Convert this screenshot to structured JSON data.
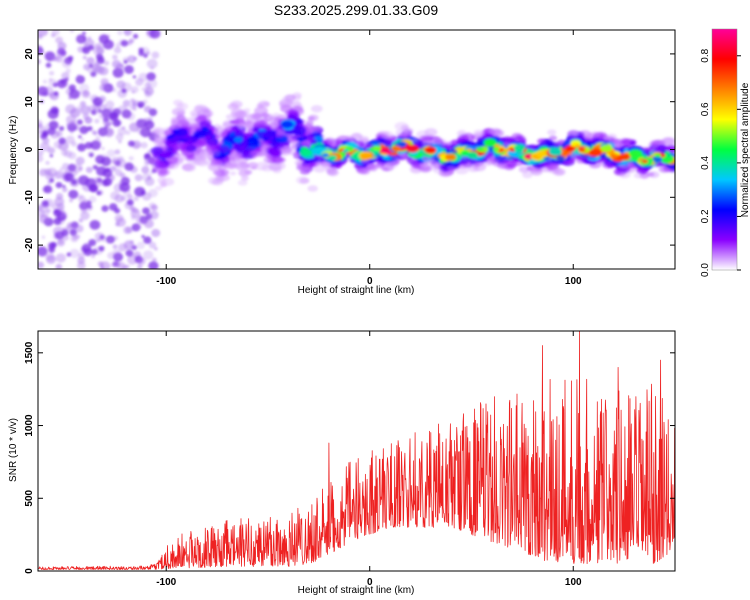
{
  "title": "S233.2025.299.01.33.G09",
  "colors": {
    "snr_line": "#ee2222",
    "frame": "#000000",
    "noise": "#a56cf0",
    "scatter_strong": "#7a2ee6"
  },
  "colorbar": {
    "label": "Normalized spectral amplitude",
    "ticks": [
      "0.0",
      "0.2",
      "0.4",
      "0.6",
      "0.8"
    ],
    "range": [
      0,
      0.9
    ],
    "colormap": [
      "#ffffff",
      "#8a00ff",
      "#0000ff",
      "#00c8ff",
      "#00ff40",
      "#ffff00",
      "#ff8000",
      "#ff0000",
      "#ff0099"
    ]
  },
  "chart_data": [
    {
      "type": "heatmap",
      "title": "S233.2025.299.01.33.G09",
      "xlabel": "Height of straight line (km)",
      "ylabel": "Frequency (Hz)",
      "xlim": [
        -163,
        150
      ],
      "ylim": [
        -25,
        25
      ],
      "xticks": [
        -100,
        0,
        100
      ],
      "xtick_labels": [
        "-100",
        "0",
        "100"
      ],
      "yticks": [
        -20,
        -10,
        0,
        10,
        20
      ],
      "ytick_labels": [
        "-20",
        "-10",
        "0",
        "10",
        "20"
      ],
      "noise_region_km": [
        -163,
        -105
      ],
      "signal_ridge": {
        "x": [
          -105,
          -95,
          -85,
          -75,
          -65,
          -58,
          -50,
          -42,
          -35,
          -30,
          -25,
          -10,
          0,
          20,
          40,
          60,
          80,
          100,
          120,
          150
        ],
        "freq_hz": [
          0,
          1,
          2,
          0,
          2,
          4,
          2,
          3,
          2,
          0,
          -1,
          0,
          -1,
          0,
          -1,
          0,
          -1,
          0,
          -1,
          -2
        ],
        "peak_amplitude": [
          0.2,
          0.25,
          0.2,
          0.25,
          0.3,
          0.3,
          0.25,
          0.3,
          0.35,
          0.4,
          0.5,
          0.7,
          0.75,
          0.8,
          0.7,
          0.7,
          0.75,
          0.8,
          0.75,
          0.7
        ]
      }
    },
    {
      "type": "line",
      "title": "",
      "xlabel": "Height of straight line (km)",
      "ylabel": "SNR (10 * v/v)",
      "xlim": [
        -163,
        150
      ],
      "ylim": [
        0,
        1650
      ],
      "xticks": [
        -100,
        0,
        100
      ],
      "xtick_labels": [
        "-100",
        "0",
        "100"
      ],
      "yticks": [
        0,
        500,
        1000,
        1500
      ],
      "ytick_labels": [
        "0",
        "500",
        "1000",
        "1500"
      ],
      "series": [
        {
          "name": "SNR",
          "envelope_x": [
            -163,
            -110,
            -105,
            -100,
            -90,
            -80,
            -70,
            -60,
            -50,
            -40,
            -30,
            -20,
            -10,
            0,
            10,
            20,
            30,
            40,
            50,
            60,
            70,
            80,
            90,
            100,
            110,
            120,
            130,
            140,
            150
          ],
          "envelope_min": [
            10,
            10,
            12,
            15,
            20,
            25,
            30,
            30,
            30,
            30,
            50,
            100,
            200,
            250,
            300,
            300,
            300,
            300,
            250,
            200,
            150,
            100,
            50,
            50,
            50,
            50,
            50,
            50,
            150
          ],
          "envelope_max": [
            30,
            35,
            50,
            200,
            280,
            300,
            350,
            380,
            420,
            430,
            500,
            600,
            750,
            850,
            900,
            950,
            1000,
            1050,
            1150,
            1200,
            1250,
            1300,
            1350,
            1500,
            1300,
            1300,
            1250,
            1300,
            1000
          ],
          "notable_peaks": [
            {
              "x": -20,
              "y": 880
            },
            {
              "x": 85,
              "y": 1550
            },
            {
              "x": 103,
              "y": 1650
            },
            {
              "x": 122,
              "y": 1400
            },
            {
              "x": 143,
              "y": 1450
            }
          ]
        }
      ]
    }
  ]
}
